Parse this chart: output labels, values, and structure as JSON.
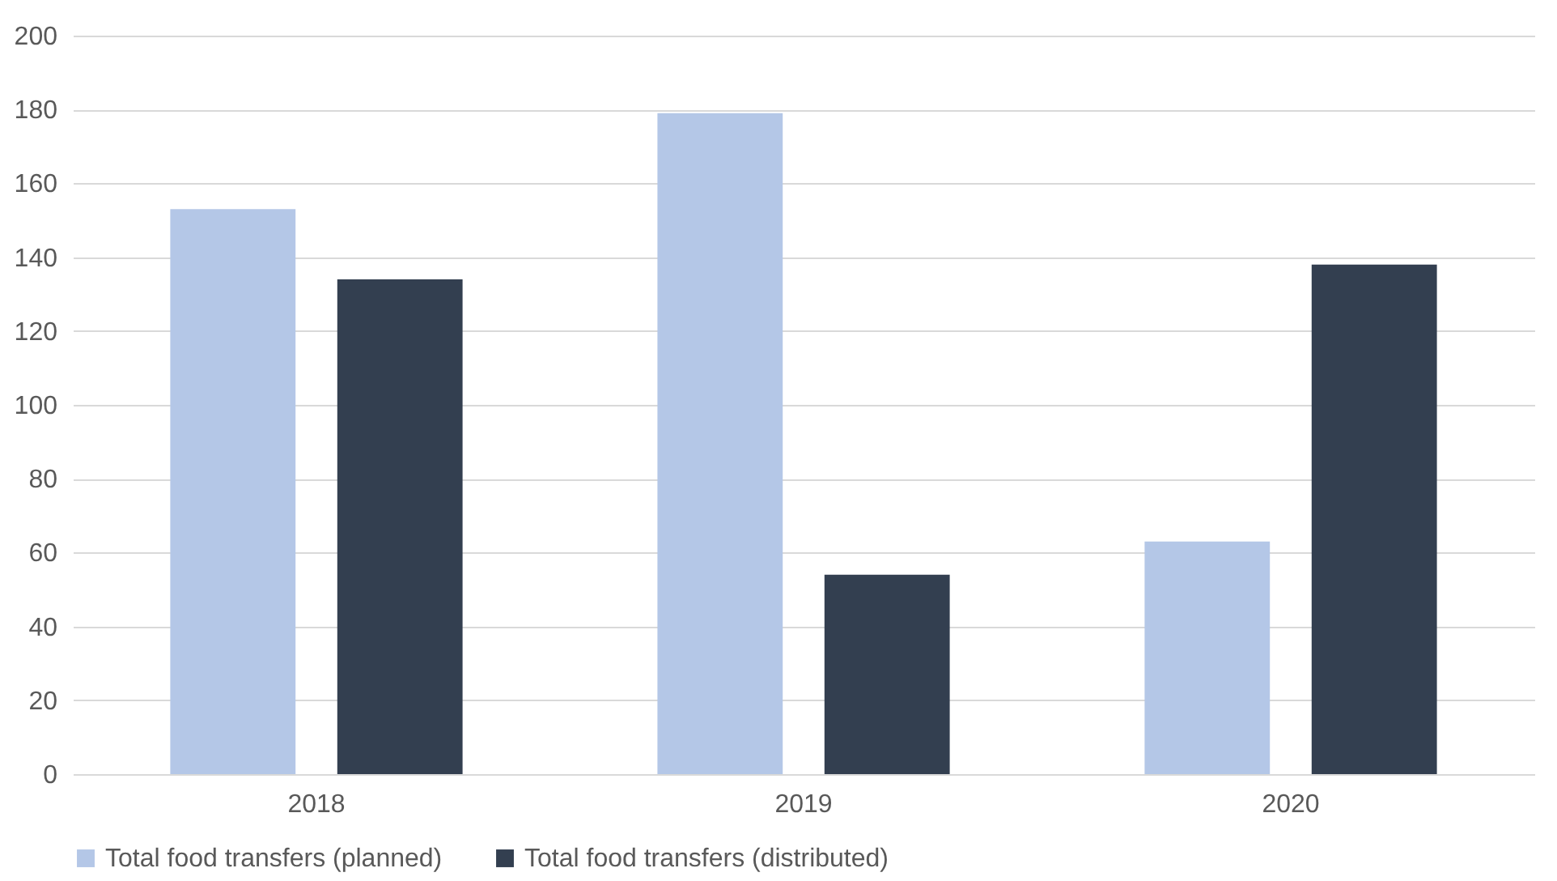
{
  "chart_data": {
    "type": "bar",
    "categories": [
      "2018",
      "2019",
      "2020"
    ],
    "series": [
      {
        "name": "Total food transfers (planned)",
        "color": "#b4c7e7",
        "values": [
          153,
          179,
          63
        ]
      },
      {
        "name": "Total food transfers (distributed)",
        "color": "#333f50",
        "values": [
          134,
          54,
          138
        ]
      }
    ],
    "ylim": [
      0,
      200
    ],
    "yticks": [
      0,
      20,
      40,
      60,
      80,
      100,
      120,
      140,
      160,
      180,
      200
    ],
    "grid": "y",
    "legend": "bottom"
  }
}
